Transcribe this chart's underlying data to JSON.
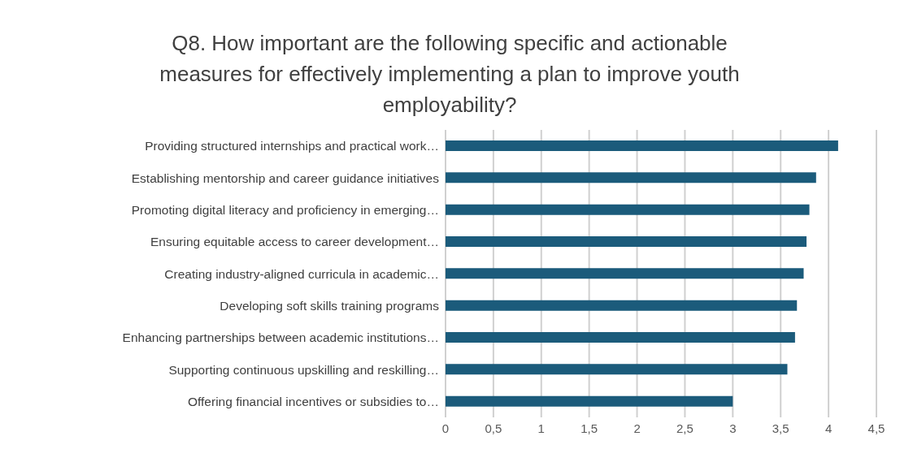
{
  "chart_data": {
    "type": "bar",
    "orientation": "horizontal",
    "title": "Q8.  How important are the following specific and actionable measures for effectively implementing a plan to improve youth employability?",
    "categories": [
      "Providing structured internships and practical work…",
      "Establishing mentorship and career guidance initiatives",
      "Promoting digital literacy and proficiency in emerging…",
      "Ensuring equitable access to career development…",
      "Creating industry-aligned curricula in academic…",
      "Developing soft skills training programs",
      "Enhancing partnerships between academic institutions…",
      "Supporting continuous upskilling and reskilling…",
      "Offering financial incentives or subsidies to…"
    ],
    "values": [
      4.1,
      3.87,
      3.8,
      3.77,
      3.74,
      3.67,
      3.65,
      3.57,
      3.0
    ],
    "color": "#1b5b7b",
    "xlim": [
      0,
      4.5
    ],
    "xticks": [
      0,
      {
        "value": 0.5,
        "label": "0,5"
      },
      1,
      {
        "value": 1.5,
        "label": "1,5"
      },
      2,
      {
        "value": 2.5,
        "label": "2,5"
      },
      3,
      {
        "value": 3.5,
        "label": "3,5"
      },
      4,
      {
        "value": 4.5,
        "label": "4,5"
      }
    ],
    "grid": "x",
    "legend": false
  }
}
